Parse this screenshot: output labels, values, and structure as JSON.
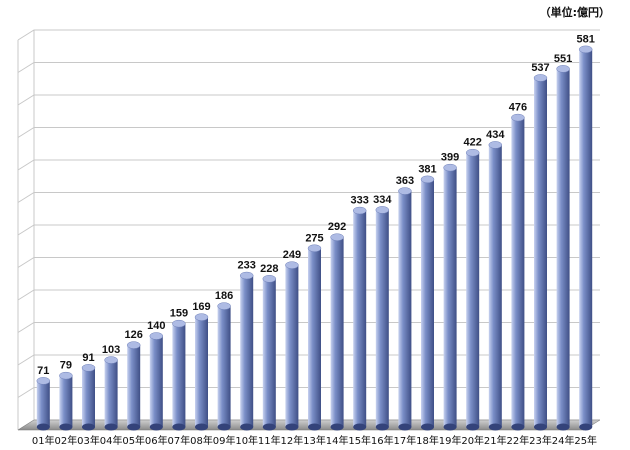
{
  "chart_data": {
    "type": "bar",
    "unit_label": "（単位:億円）",
    "categories": [
      "01年",
      "02年",
      "03年",
      "04年",
      "05年",
      "06年",
      "07年",
      "08年",
      "09年",
      "10年",
      "11年",
      "12年",
      "13年",
      "14年",
      "15年",
      "16年",
      "17年",
      "18年",
      "19年",
      "20年",
      "21年",
      "22年",
      "23年",
      "24年",
      "25年"
    ],
    "values": [
      71,
      79,
      91,
      103,
      126,
      140,
      159,
      169,
      186,
      233,
      228,
      249,
      275,
      292,
      333,
      334,
      363,
      381,
      399,
      422,
      434,
      476,
      537,
      551,
      581
    ],
    "ylim": [
      0,
      600
    ],
    "grid": true,
    "title": "",
    "xlabel": "",
    "ylabel": "",
    "colors": {
      "bar_light": "#c8d2f0",
      "bar_mid": "#7b8fc8",
      "bar_dark": "#3f4f86",
      "floor": "#9a9a9a",
      "grid": "#c8c8c8"
    }
  }
}
